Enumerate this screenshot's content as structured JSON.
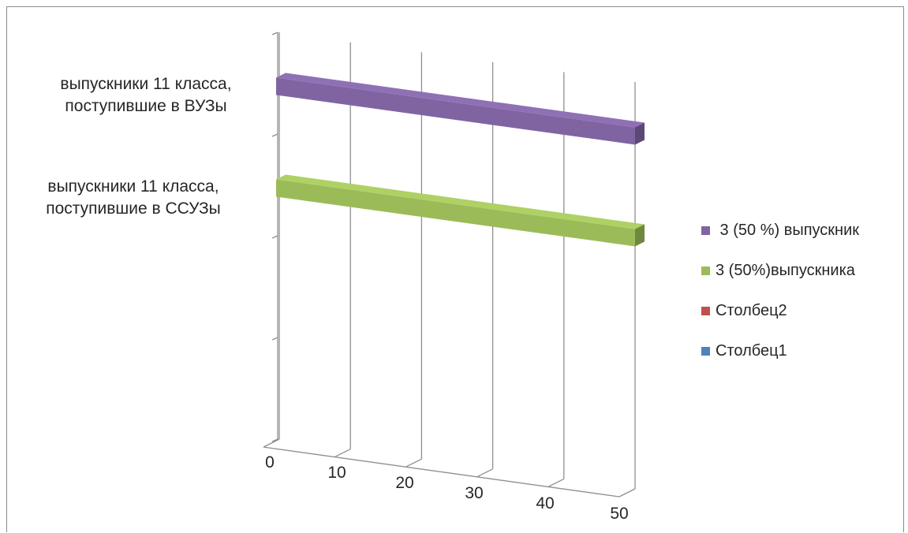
{
  "chart_data": {
    "type": "bar",
    "orientation": "horizontal",
    "style": "3d",
    "categories": [
      [
        "выпускники 11 класса,",
        "поступившие в ВУЗы"
      ],
      [
        "выпускники 11 класса,",
        "поступившие в ССУЗы"
      ]
    ],
    "series": [
      {
        "name": " 3 (50 %) выпускник",
        "color": "#8064a2",
        "values": [
          50,
          null
        ]
      },
      {
        "name": "3 (50%)выпускника",
        "color": "#9bbb59",
        "values": [
          null,
          50
        ]
      },
      {
        "name": "Столбец2",
        "color": "#c0504d",
        "values": [
          null,
          null
        ]
      },
      {
        "name": "Столбец1",
        "color": "#4f81bd",
        "values": [
          null,
          null
        ]
      }
    ],
    "x_ticks": [
      "0",
      "10",
      "20",
      "30",
      "40",
      "50"
    ],
    "xlim": [
      0,
      50
    ],
    "grid": true,
    "legend_position": "right"
  }
}
